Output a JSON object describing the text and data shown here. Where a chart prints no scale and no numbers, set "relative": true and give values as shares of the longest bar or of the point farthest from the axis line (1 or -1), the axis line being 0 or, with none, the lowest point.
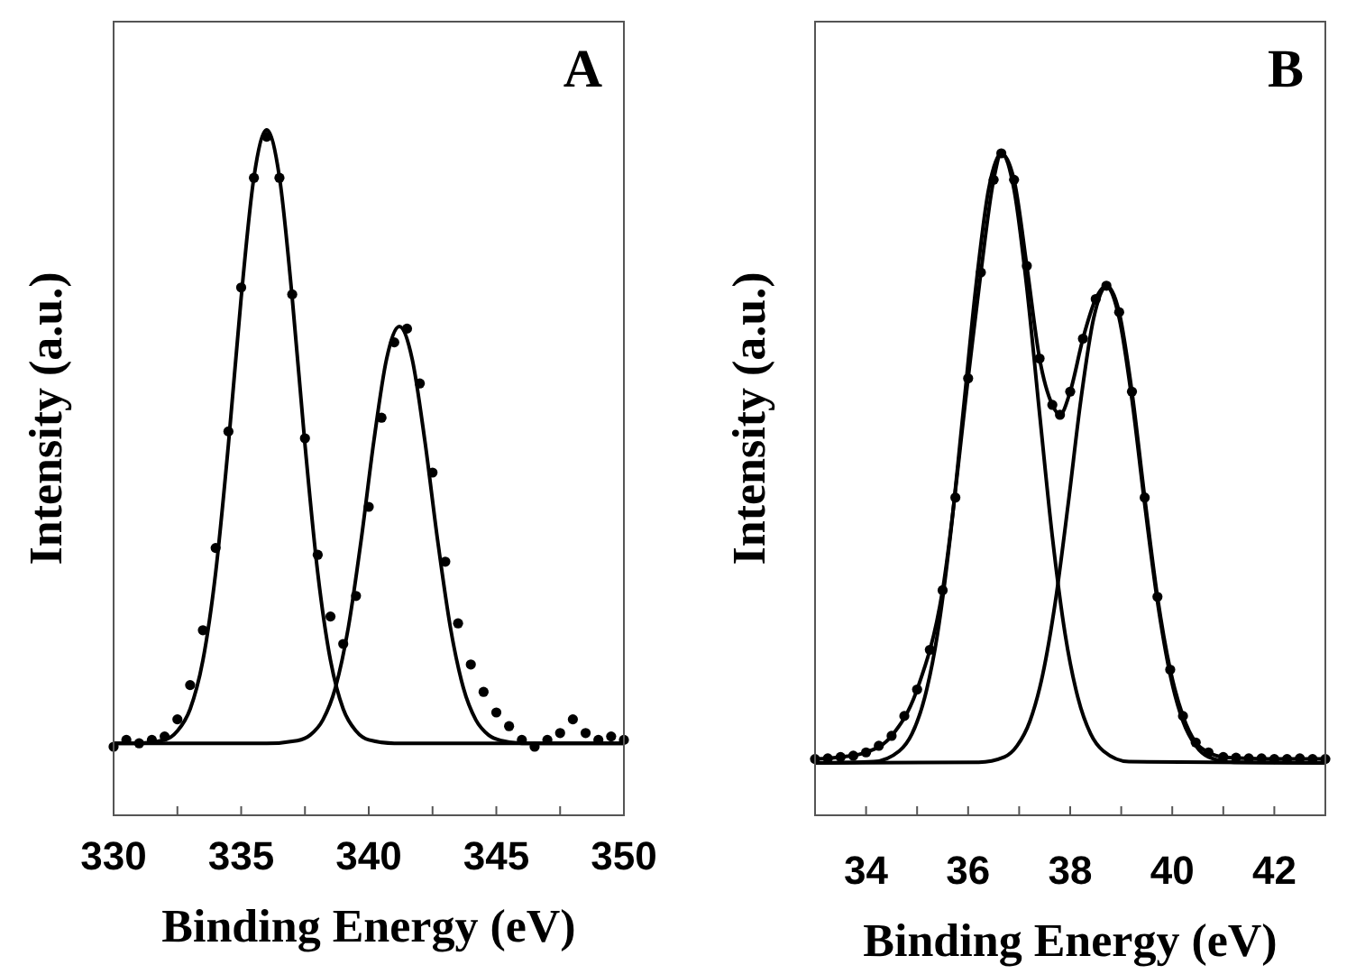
{
  "chart_data": [
    {
      "type": "line",
      "relative": true,
      "xlabel": "Binding Energy (eV)",
      "ylabel": "Intensity (a.u.)",
      "annotations": [
        "A"
      ],
      "grid": false,
      "xlim": [
        330,
        350
      ],
      "xticks": [
        330,
        {
          "value": 332.5,
          "label": null
        },
        335,
        {
          "value": 337.5,
          "label": null
        },
        340,
        {
          "value": 342.5,
          "label": null
        },
        345,
        {
          "value": 347.5,
          "label": null
        },
        350
      ],
      "series": [
        {
          "type": "scatter",
          "marker": "circle",
          "color": "#000000",
          "x": [
            330,
            330.5,
            331,
            331.5,
            332,
            332.5,
            333,
            333.5,
            334,
            334.5,
            335,
            335.5,
            336,
            336.5,
            337,
            337.5,
            338,
            338.5,
            339,
            339.5,
            340,
            340.5,
            341,
            341.5,
            342,
            342.5,
            343,
            343.5,
            344,
            344.5,
            345,
            345.5,
            346,
            346.5,
            347,
            347.5,
            348,
            348.5,
            349,
            349.5,
            350
          ],
          "values": [
            0.1,
            0.11,
            0.105,
            0.11,
            0.115,
            0.14,
            0.19,
            0.27,
            0.39,
            0.56,
            0.77,
            0.93,
            0.99,
            0.93,
            0.76,
            0.55,
            0.38,
            0.29,
            0.25,
            0.32,
            0.45,
            0.58,
            0.69,
            0.71,
            0.63,
            0.5,
            0.37,
            0.28,
            0.22,
            0.18,
            0.15,
            0.13,
            0.11,
            0.1,
            0.11,
            0.12,
            0.14,
            0.12,
            0.11,
            0.115,
            0.11
          ]
        },
        {
          "type": "line",
          "marker": "none",
          "line_style": "solid",
          "color": "#000000",
          "x": [
            330,
            331,
            332,
            332.5,
            333,
            333.5,
            334,
            334.5,
            335,
            335.5,
            336,
            336.5,
            337,
            337.5,
            338,
            338.5,
            339,
            339.5,
            340,
            341,
            350
          ],
          "values": [
            0.105,
            0.105,
            0.11,
            0.123,
            0.155,
            0.226,
            0.354,
            0.541,
            0.755,
            0.931,
            1.0,
            0.931,
            0.755,
            0.541,
            0.354,
            0.226,
            0.155,
            0.123,
            0.11,
            0.105,
            0.105
          ]
        },
        {
          "type": "line",
          "marker": "none",
          "line_style": "solid",
          "color": "#000000",
          "x": [
            330,
            336,
            337.2,
            337.7,
            338.2,
            338.7,
            339.2,
            339.7,
            340.2,
            340.7,
            341.2,
            341.7,
            342.2,
            342.7,
            343.2,
            343.7,
            344.2,
            344.7,
            345.2,
            346,
            350
          ],
          "values": [
            0.105,
            0.105,
            0.109,
            0.117,
            0.139,
            0.187,
            0.274,
            0.401,
            0.546,
            0.666,
            0.713,
            0.666,
            0.546,
            0.401,
            0.274,
            0.187,
            0.139,
            0.117,
            0.109,
            0.105,
            0.105
          ]
        }
      ]
    },
    {
      "type": "line",
      "relative": true,
      "xlabel": "Binding Energy (eV)",
      "ylabel": "Intensity (a.u.)",
      "annotations": [
        "B"
      ],
      "grid": false,
      "xlim": [
        33,
        43
      ],
      "xticks": [
        34,
        {
          "value": 35,
          "label": null
        },
        36,
        {
          "value": 37,
          "label": null
        },
        38,
        {
          "value": 39,
          "label": null
        },
        40,
        {
          "value": 41,
          "label": null
        },
        42
      ],
      "series": [
        {
          "type": "scatter",
          "marker": "circle",
          "color": "#000000",
          "x": [
            33,
            33.25,
            33.5,
            33.75,
            34,
            34.25,
            34.5,
            34.75,
            35,
            35.25,
            35.5,
            35.75,
            36,
            36.25,
            36.5,
            36.65,
            36.9,
            37.15,
            37.4,
            37.65,
            37.8,
            38,
            38.25,
            38.5,
            38.71,
            38.96,
            39.21,
            39.46,
            39.71,
            39.96,
            40.21,
            40.46,
            40.71,
            41,
            41.25,
            41.5,
            41.75,
            42,
            42.25,
            42.5,
            42.75,
            43
          ],
          "values": [
            0.085,
            0.086,
            0.088,
            0.09,
            0.095,
            0.105,
            0.12,
            0.15,
            0.19,
            0.25,
            0.34,
            0.48,
            0.66,
            0.82,
            0.96,
            1.0,
            0.96,
            0.83,
            0.69,
            0.62,
            0.605,
            0.64,
            0.72,
            0.78,
            0.8,
            0.76,
            0.64,
            0.48,
            0.33,
            0.22,
            0.15,
            0.11,
            0.095,
            0.088,
            0.087,
            0.086,
            0.086,
            0.085,
            0.085,
            0.086,
            0.085,
            0.085
          ]
        },
        {
          "type": "line",
          "marker": "none",
          "line_style": "solid",
          "color": "#000000",
          "x": [
            33,
            33.5,
            34,
            34.5,
            35,
            35.5,
            36,
            36.25,
            36.5,
            36.65,
            36.9,
            37.15,
            37.4,
            37.65,
            37.8,
            38,
            38.25,
            38.5,
            38.71,
            38.96,
            39.21,
            39.46,
            39.71,
            39.96,
            40.21,
            40.46,
            40.71,
            41,
            41.5,
            42,
            43
          ],
          "values": [
            0.085,
            0.088,
            0.095,
            0.12,
            0.19,
            0.34,
            0.66,
            0.82,
            0.96,
            1.0,
            0.96,
            0.83,
            0.69,
            0.62,
            0.605,
            0.64,
            0.72,
            0.78,
            0.8,
            0.76,
            0.64,
            0.48,
            0.33,
            0.22,
            0.15,
            0.11,
            0.095,
            0.088,
            0.086,
            0.085,
            0.085
          ]
        },
        {
          "type": "line",
          "marker": "none",
          "line_style": "solid",
          "color": "#000000",
          "x": [
            33,
            34.15,
            34.65,
            34.9,
            35.15,
            35.4,
            35.65,
            35.9,
            36.15,
            36.4,
            36.65,
            36.9,
            37.15,
            37.4,
            37.65,
            37.9,
            38.15,
            38.4,
            38.65,
            39.15,
            43
          ],
          "values": [
            0.079,
            0.081,
            0.097,
            0.123,
            0.178,
            0.274,
            0.421,
            0.607,
            0.797,
            0.945,
            1.0,
            0.945,
            0.797,
            0.607,
            0.421,
            0.274,
            0.178,
            0.123,
            0.097,
            0.081,
            0.079
          ]
        },
        {
          "type": "line",
          "marker": "none",
          "line_style": "solid",
          "color": "#000000",
          "x": [
            33,
            36.21,
            36.71,
            36.96,
            37.21,
            37.46,
            37.71,
            37.96,
            38.21,
            38.46,
            38.71,
            38.96,
            39.21,
            39.46,
            39.71,
            39.96,
            40.21,
            40.46,
            40.71,
            41.21,
            43
          ],
          "values": [
            0.079,
            0.08,
            0.088,
            0.105,
            0.142,
            0.212,
            0.323,
            0.47,
            0.628,
            0.751,
            0.798,
            0.751,
            0.628,
            0.47,
            0.323,
            0.212,
            0.142,
            0.105,
            0.088,
            0.08,
            0.079
          ]
        }
      ]
    }
  ]
}
